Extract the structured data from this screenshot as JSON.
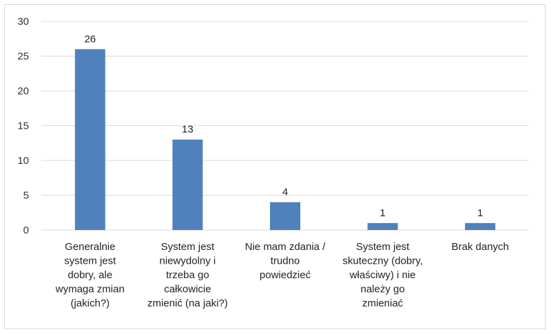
{
  "chart_data": {
    "type": "bar",
    "categories": [
      [
        "Generalnie",
        "system jest",
        "dobry, ale",
        "wymaga zmian",
        "(jakich?)"
      ],
      [
        "System jest",
        "niewydolny i",
        "trzeba go",
        "całkowicie",
        "zmienić (na jaki?)"
      ],
      [
        "Nie mam zdania /",
        "trudno",
        "powiedzieć"
      ],
      [
        "System jest",
        "skuteczny (dobry,",
        "właściwy) i nie",
        "należy go",
        "zmieniać"
      ],
      [
        "Brak danych"
      ]
    ],
    "values": [
      26,
      13,
      4,
      1,
      1
    ],
    "ylim": [
      0,
      30
    ],
    "yticks": [
      0,
      5,
      10,
      15,
      20,
      25,
      30
    ],
    "grid": true,
    "legend": "none",
    "bar_color": "#4f81bd",
    "grid_color": "#d9d9d9"
  }
}
